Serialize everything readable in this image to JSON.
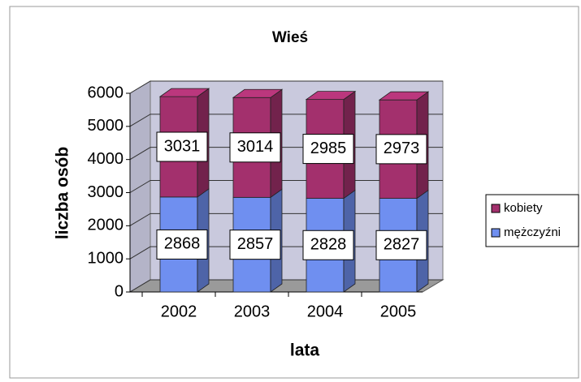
{
  "chart_data": {
    "type": "bar",
    "stacked": true,
    "title": "Wieś",
    "x_label": "lata",
    "y_label": "liczba osób",
    "categories": [
      "2002",
      "2003",
      "2004",
      "2005"
    ],
    "series": [
      {
        "name": "mężczyźni",
        "color": "#6f8ff0",
        "values": [
          2868,
          2857,
          2828,
          2827
        ]
      },
      {
        "name": "kobiety",
        "color": "#a3306d",
        "values": [
          3031,
          3014,
          2985,
          2973
        ]
      }
    ],
    "ylim": [
      0,
      6000
    ],
    "yticks": [
      0,
      1000,
      2000,
      3000,
      4000,
      5000,
      6000
    ],
    "grid": true,
    "legend": "right"
  }
}
